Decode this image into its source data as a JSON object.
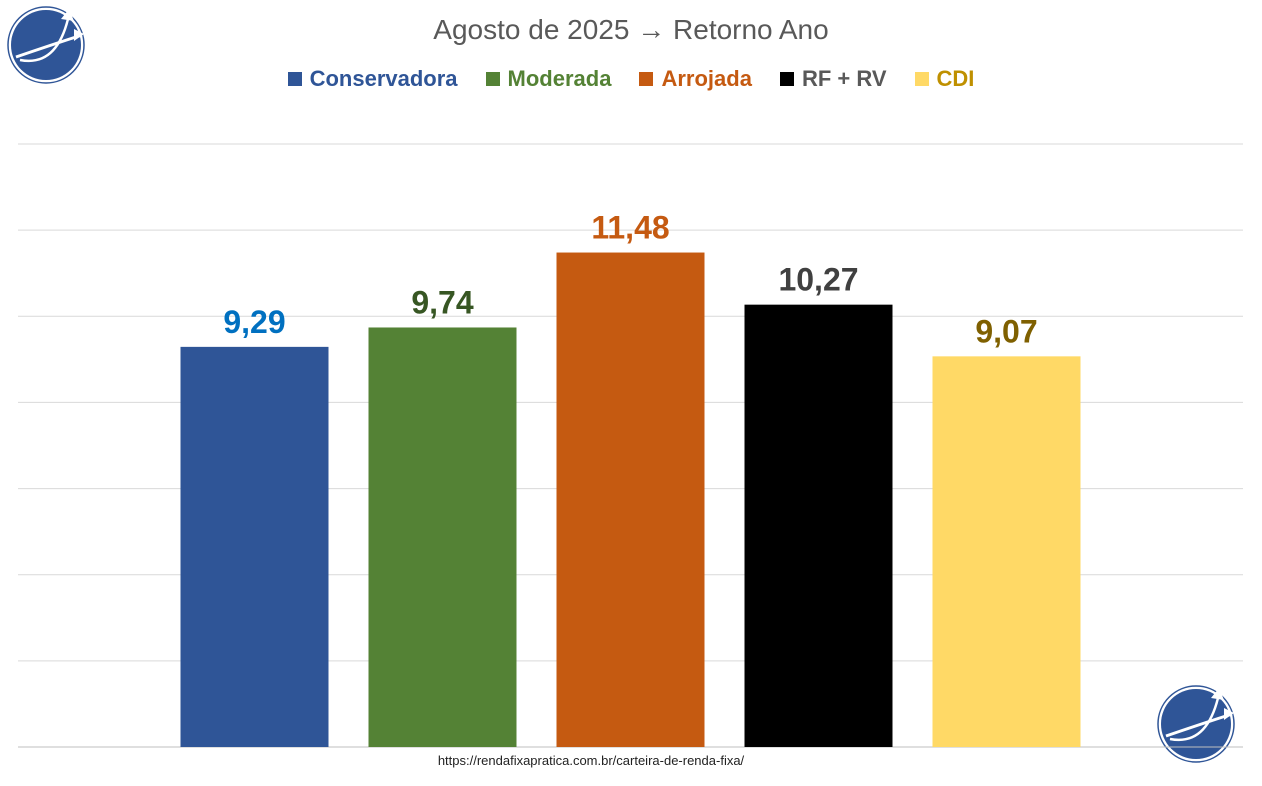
{
  "chart_data": {
    "type": "bar",
    "title": "Agosto de 2025 → Retorno Ano",
    "categories": [
      "Conservadora",
      "Moderada",
      "Arrojada",
      "RF + RV",
      "CDI"
    ],
    "values": [
      9.29,
      9.74,
      11.48,
      10.27,
      9.07
    ],
    "data_labels": [
      "9,29",
      "9,74",
      "11,48",
      "10,27",
      "9,07"
    ],
    "bar_colors": [
      "#2F5597",
      "#548235",
      "#C55A11",
      "#000000",
      "#FFD966"
    ],
    "legend_text_colors": [
      "#2F5597",
      "#548235",
      "#C55A11",
      "#595959",
      "#BF9000"
    ],
    "label_colors": [
      "#0070C0",
      "#375623",
      "#C55A11",
      "#404040",
      "#7F6000"
    ],
    "xlabel": "",
    "ylabel": "",
    "ylim": [
      0,
      14
    ],
    "grid_step": 2,
    "grid": true,
    "legend_position": "top"
  },
  "footer": {
    "url": "https://rendafixapratica.com.br/carteira-de-renda-fixa/"
  }
}
